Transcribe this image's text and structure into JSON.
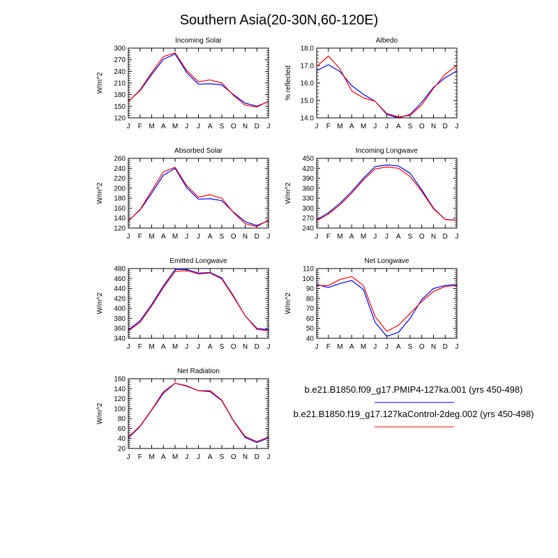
{
  "figure": {
    "title": "Southern Asia(20-30N,60-120E)"
  },
  "legend": [
    {
      "label": "b.e21.B1850.f09_g17.PMIP4-127ka.001 (yrs 450-498)",
      "color": "#0000ff"
    },
    {
      "label": "b.e21.B1850.f19_g17.127kaControl-2deg.002 (yrs 450-498)",
      "color": "#ff0000"
    }
  ],
  "chart_data": [
    {
      "type": "line",
      "title": "Incoming Solar",
      "ylabel": "W/m^2",
      "categories": [
        "J",
        "F",
        "M",
        "A",
        "M",
        "J",
        "J",
        "A",
        "S",
        "O",
        "N",
        "D",
        "J"
      ],
      "ylim": [
        120,
        300
      ],
      "yticks": [
        120,
        150,
        180,
        210,
        240,
        270,
        300
      ],
      "series": [
        {
          "color": "#0000ff",
          "values": [
            163,
            190,
            232,
            271,
            285,
            237,
            207,
            208,
            205,
            180,
            158,
            150,
            162
          ]
        },
        {
          "color": "#ff0000",
          "values": [
            162,
            192,
            237,
            278,
            288,
            242,
            213,
            218,
            210,
            178,
            153,
            148,
            163
          ]
        }
      ]
    },
    {
      "type": "line",
      "title": "Albedo",
      "ylabel": "% reflected",
      "categories": [
        "J",
        "F",
        "M",
        "A",
        "M",
        "J",
        "J",
        "A",
        "S",
        "O",
        "N",
        "D",
        "J"
      ],
      "ylim": [
        14.0,
        18.0
      ],
      "yticks": [
        14.0,
        15.0,
        16.0,
        17.0,
        18.0
      ],
      "tick_decimals": 1,
      "series": [
        {
          "color": "#0000ff",
          "values": [
            16.7,
            17.05,
            16.65,
            15.85,
            15.35,
            14.95,
            14.2,
            14.0,
            14.2,
            14.9,
            15.75,
            16.3,
            16.7
          ]
        },
        {
          "color": "#ff0000",
          "values": [
            16.95,
            17.55,
            16.8,
            15.55,
            15.15,
            14.95,
            14.25,
            14.05,
            14.15,
            14.75,
            15.7,
            16.5,
            17.0
          ]
        }
      ]
    },
    {
      "type": "line",
      "title": "Absorbed Solar",
      "ylabel": "W/m^2",
      "categories": [
        "J",
        "F",
        "M",
        "A",
        "M",
        "J",
        "J",
        "A",
        "S",
        "O",
        "N",
        "D",
        "J"
      ],
      "ylim": [
        120,
        260
      ],
      "yticks": [
        120,
        140,
        160,
        180,
        200,
        220,
        240,
        260
      ],
      "series": [
        {
          "color": "#0000ff",
          "values": [
            135,
            156,
            190,
            226,
            240,
            201,
            178,
            179,
            175,
            152,
            133,
            125,
            135
          ]
        },
        {
          "color": "#ff0000",
          "values": [
            134,
            157,
            195,
            233,
            242,
            205,
            182,
            187,
            180,
            151,
            129,
            123,
            136
          ]
        }
      ]
    },
    {
      "type": "line",
      "title": "Incoming Longwave",
      "ylabel": "W/m^2",
      "categories": [
        "J",
        "F",
        "M",
        "A",
        "M",
        "J",
        "J",
        "A",
        "S",
        "O",
        "N",
        "D",
        "J"
      ],
      "ylim": [
        240,
        450
      ],
      "yticks": [
        240,
        270,
        300,
        330,
        360,
        390,
        420,
        450
      ],
      "series": [
        {
          "color": "#0000ff",
          "values": [
            265,
            286,
            315,
            350,
            390,
            425,
            430,
            427,
            405,
            355,
            300,
            266,
            264
          ]
        },
        {
          "color": "#ff0000",
          "values": [
            262,
            282,
            310,
            345,
            385,
            418,
            424,
            420,
            395,
            350,
            298,
            266,
            263
          ]
        }
      ]
    },
    {
      "type": "line",
      "title": "Emitted Longwave",
      "ylabel": "W/m^2",
      "categories": [
        "J",
        "F",
        "M",
        "A",
        "M",
        "J",
        "J",
        "A",
        "S",
        "O",
        "N",
        "D",
        "J"
      ],
      "ylim": [
        340,
        480
      ],
      "yticks": [
        340,
        360,
        380,
        400,
        420,
        440,
        460,
        480
      ],
      "series": [
        {
          "color": "#0000ff",
          "values": [
            357,
            375,
            408,
            445,
            478,
            478,
            471,
            472,
            461,
            425,
            385,
            360,
            357
          ]
        },
        {
          "color": "#ff0000",
          "values": [
            355,
            372,
            405,
            442,
            474,
            476,
            469,
            471,
            459,
            423,
            385,
            358,
            355
          ]
        }
      ]
    },
    {
      "type": "line",
      "title": "Net Longwave",
      "ylabel": "W/m^2",
      "categories": [
        "J",
        "F",
        "M",
        "A",
        "M",
        "J",
        "J",
        "A",
        "S",
        "O",
        "N",
        "D",
        "J"
      ],
      "ylim": [
        40,
        110
      ],
      "yticks": [
        40,
        50,
        60,
        70,
        80,
        90,
        100,
        110
      ],
      "series": [
        {
          "color": "#0000ff",
          "values": [
            94,
            91,
            95,
            98,
            89,
            56,
            42,
            46,
            60,
            79,
            90,
            93,
            94
          ]
        },
        {
          "color": "#ff0000",
          "values": [
            93,
            93,
            99,
            102,
            93,
            62,
            47,
            53,
            65,
            77,
            87,
            92,
            93
          ]
        }
      ]
    },
    {
      "type": "line",
      "title": "Net Radiation",
      "ylabel": "W/m^2",
      "categories": [
        "J",
        "F",
        "M",
        "A",
        "M",
        "J",
        "J",
        "A",
        "S",
        "O",
        "N",
        "D",
        "J"
      ],
      "ylim": [
        20,
        160
      ],
      "yticks": [
        20,
        40,
        60,
        80,
        100,
        120,
        140,
        160
      ],
      "series": [
        {
          "color": "#0000ff",
          "values": [
            41,
            64,
            97,
            131,
            151,
            145,
            136,
            134,
            116,
            75,
            42,
            32,
            41
          ]
        },
        {
          "color": "#ff0000",
          "values": [
            43,
            65,
            98,
            134,
            151,
            146,
            136,
            136,
            117,
            76,
            44,
            34,
            43
          ]
        }
      ]
    }
  ]
}
